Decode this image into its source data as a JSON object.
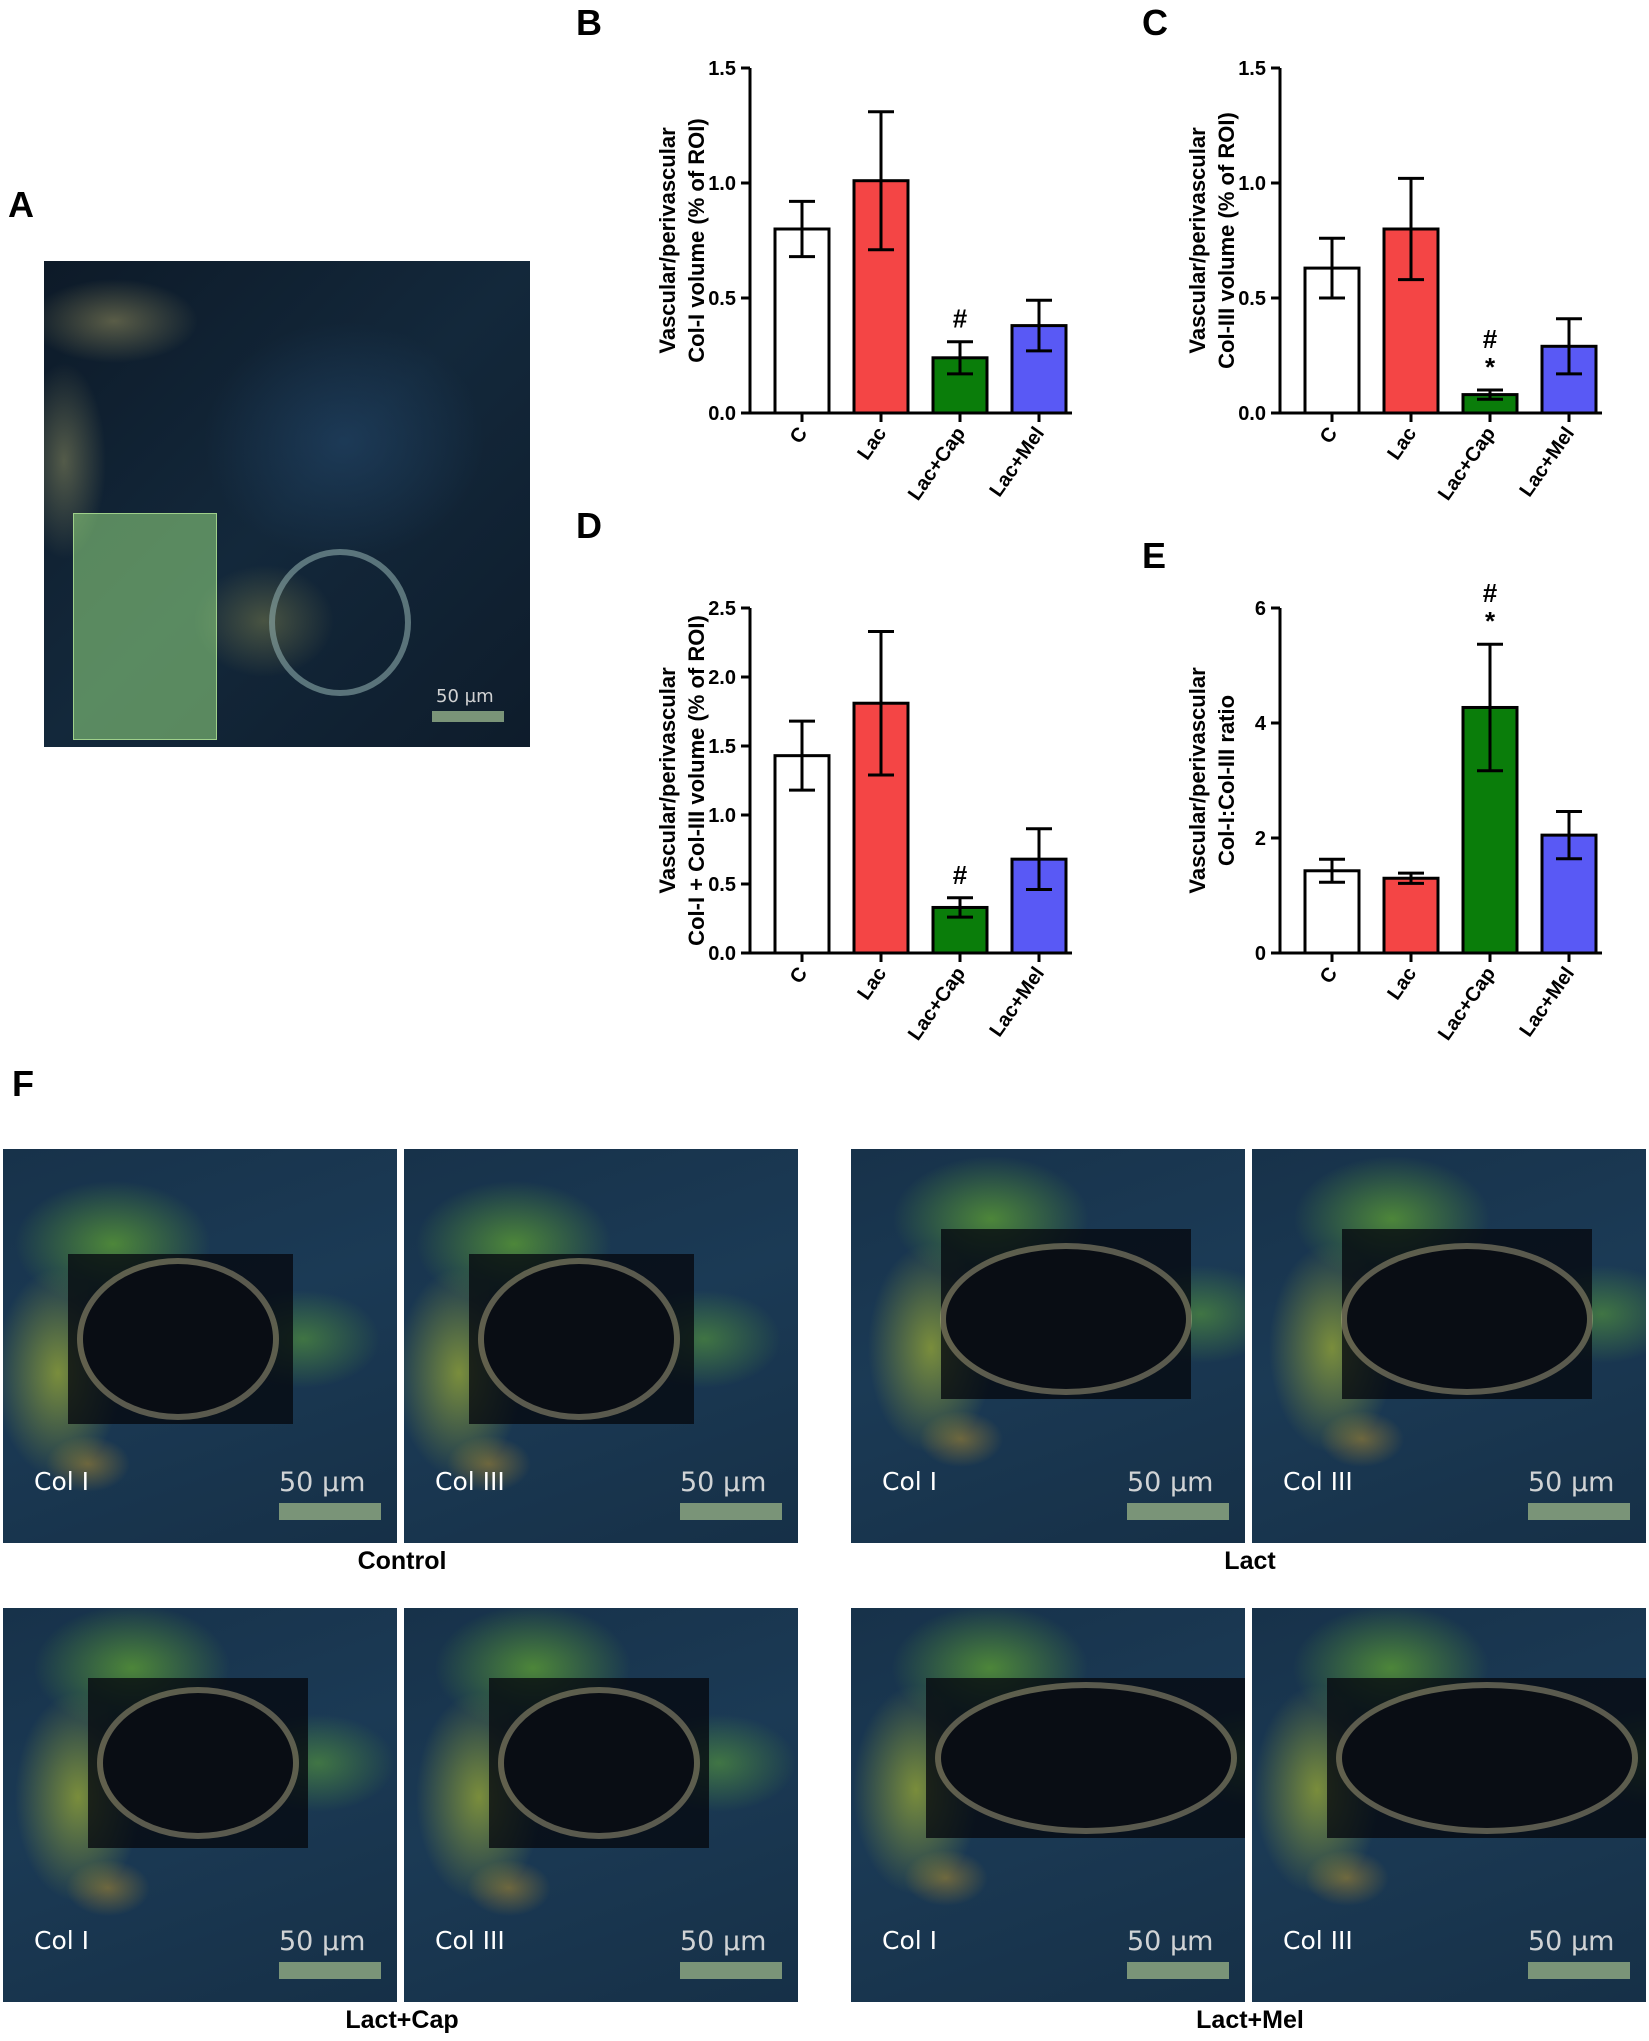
{
  "panels": {
    "A": {
      "letter": "A",
      "scalebar": "50 µm"
    },
    "F": {
      "letter": "F",
      "groups": [
        {
          "label": "Control",
          "images": [
            {
              "channel": "Col I",
              "scalebar": "50 µm"
            },
            {
              "channel": "Col III",
              "scalebar": "50 µm"
            }
          ]
        },
        {
          "label": "Lact",
          "images": [
            {
              "channel": "Col I",
              "scalebar": "50 µm"
            },
            {
              "channel": "Col III",
              "scalebar": "50 µm"
            }
          ]
        },
        {
          "label": "Lact+Cap",
          "images": [
            {
              "channel": "Col I",
              "scalebar": "50 µm"
            },
            {
              "channel": "Col III",
              "scalebar": "50 µm"
            }
          ]
        },
        {
          "label": "Lact+Mel",
          "images": [
            {
              "channel": "Col I",
              "scalebar": "50 µm"
            },
            {
              "channel": "Col III",
              "scalebar": "50 µm"
            }
          ]
        }
      ]
    }
  },
  "colors": {
    "C": "#ffffff",
    "Lac": "#f44545",
    "Lac+Cap": "#0a7d0a",
    "Lac+Mel": "#5959f5"
  },
  "chart_data": [
    {
      "panel": "B",
      "type": "bar",
      "ylabel": [
        "Vascular/perivascular",
        "Col-I volume (% of ROI)"
      ],
      "categories": [
        "C",
        "Lac",
        "Lac+Cap",
        "Lac+Mel"
      ],
      "values": [
        0.8,
        1.01,
        0.24,
        0.38
      ],
      "errors": [
        0.12,
        0.3,
        0.07,
        0.11
      ],
      "annotations": [
        null,
        null,
        [
          "#"
        ],
        null
      ],
      "ylim": [
        0,
        1.5
      ],
      "yticks": [
        0.0,
        0.5,
        1.0,
        1.5
      ],
      "ytick_labels": [
        "0.0",
        "0.5",
        "1.0",
        "1.5"
      ]
    },
    {
      "panel": "C",
      "type": "bar",
      "ylabel": [
        "Vascular/perivascular",
        "Col-III volume (% of ROI)"
      ],
      "categories": [
        "C",
        "Lac",
        "Lac+Cap",
        "Lac+Mel"
      ],
      "values": [
        0.63,
        0.8,
        0.08,
        0.29
      ],
      "errors": [
        0.13,
        0.22,
        0.02,
        0.12
      ],
      "annotations": [
        null,
        null,
        [
          "#",
          "*"
        ],
        null
      ],
      "ylim": [
        0,
        1.5
      ],
      "yticks": [
        0.0,
        0.5,
        1.0,
        1.5
      ],
      "ytick_labels": [
        "0.0",
        "0.5",
        "1.0",
        "1.5"
      ]
    },
    {
      "panel": "D",
      "type": "bar",
      "ylabel": [
        "Vascular/perivascular",
        "Col-I + Col-III volume (% of ROI)"
      ],
      "categories": [
        "C",
        "Lac",
        "Lac+Cap",
        "Lac+Mel"
      ],
      "values": [
        1.43,
        1.81,
        0.33,
        0.68
      ],
      "errors": [
        0.25,
        0.52,
        0.07,
        0.22
      ],
      "annotations": [
        null,
        null,
        [
          "#"
        ],
        null
      ],
      "ylim": [
        0,
        2.5
      ],
      "yticks": [
        0.0,
        0.5,
        1.0,
        1.5,
        2.0,
        2.5
      ],
      "ytick_labels": [
        "0.0",
        "0.5",
        "1.0",
        "1.5",
        "2.0",
        "2.5"
      ]
    },
    {
      "panel": "E",
      "type": "bar",
      "ylabel": [
        "Vascular/perivascular",
        "Col-I:Col-III ratio"
      ],
      "categories": [
        "C",
        "Lac",
        "Lac+Cap",
        "Lac+Mel"
      ],
      "values": [
        1.43,
        1.3,
        4.27,
        2.05
      ],
      "errors": [
        0.2,
        0.09,
        1.1,
        0.41
      ],
      "annotations": [
        null,
        null,
        [
          "#",
          "*"
        ],
        null
      ],
      "ylim": [
        0,
        6
      ],
      "yticks": [
        0,
        2,
        4,
        6
      ],
      "ytick_labels": [
        "0",
        "2",
        "4",
        "6"
      ]
    }
  ]
}
